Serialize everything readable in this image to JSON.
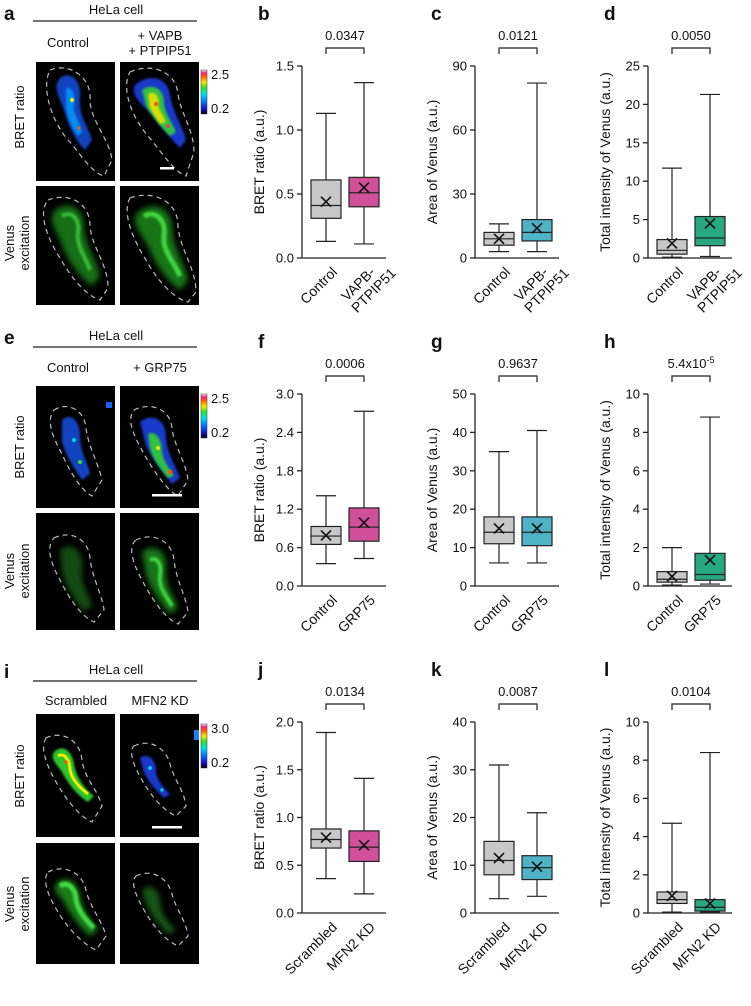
{
  "colors": {
    "control": "#c8c8c8",
    "magenta": "#d0519a",
    "teal": "#4fb3c6",
    "green": "#27a87f",
    "micro_bg": "#000000",
    "venus": "#2fd52f"
  },
  "rows": [
    {
      "header": "HeLa cell",
      "cond1": "Control",
      "cond2a": "+ VAPB",
      "cond2b": "+ PTPIP51",
      "bret_label": "BRET ratio",
      "venus_label1": "Venus",
      "venus_label2": "excitation",
      "colorbar_max": "2.5",
      "colorbar_min": "0.2"
    },
    {
      "header": "HeLa cell",
      "cond1": "Control",
      "cond2a": "+ GRP75",
      "cond2b": "",
      "bret_label": "BRET ratio",
      "venus_label1": "Venus",
      "venus_label2": "excitation",
      "colorbar_max": "2.5",
      "colorbar_min": "0.2"
    },
    {
      "header": "HeLa cell",
      "cond1": "Scrambled",
      "cond2a": "MFN2 KD",
      "cond2b": "",
      "bret_label": "BRET ratio",
      "venus_label1": "Venus",
      "venus_label2": "excitation",
      "colorbar_max": "3.0",
      "colorbar_min": "0.2"
    }
  ],
  "image_panel_letters": [
    "a",
    "e",
    "i"
  ],
  "chart_data": [
    {
      "panel": "b",
      "type": "box",
      "ylabel": "BRET ratio (a.u.)",
      "ylim": [
        0,
        1.5
      ],
      "yticks": [
        "0.0",
        "0.5",
        "1.0",
        "1.5"
      ],
      "categories": [
        "Control",
        "VAPB-|PTPIP51"
      ],
      "pvalue": "0.0347",
      "boxes": [
        {
          "min": 0.13,
          "q1": 0.31,
          "median": 0.41,
          "q3": 0.61,
          "max": 1.13,
          "mean": 0.44,
          "color": "control"
        },
        {
          "min": 0.11,
          "q1": 0.4,
          "median": 0.51,
          "q3": 0.63,
          "max": 1.37,
          "mean": 0.55,
          "color": "magenta"
        }
      ]
    },
    {
      "panel": "c",
      "type": "box",
      "ylabel": "Area of Venus (a.u.)",
      "ylim": [
        0,
        90
      ],
      "yticks": [
        "0",
        "30",
        "60",
        "90"
      ],
      "categories": [
        "Control",
        "VAPB-|PTPIP51"
      ],
      "pvalue": "0.0121",
      "boxes": [
        {
          "min": 3,
          "q1": 6,
          "median": 9,
          "q3": 12,
          "max": 16,
          "mean": 9,
          "color": "control"
        },
        {
          "min": 3,
          "q1": 8,
          "median": 12,
          "q3": 18,
          "max": 82,
          "mean": 14,
          "color": "teal"
        }
      ]
    },
    {
      "panel": "d",
      "type": "box",
      "ylabel": "Total intensity of Venus (a.u.)",
      "ylim": [
        0,
        25
      ],
      "yticks": [
        "0",
        "5",
        "10",
        "15",
        "20",
        "25"
      ],
      "categories": [
        "Control",
        "VAPB-|PTPIP51"
      ],
      "pvalue": "0.0050",
      "boxes": [
        {
          "min": 0.1,
          "q1": 0.5,
          "median": 1.0,
          "q3": 2.4,
          "max": 11.7,
          "mean": 1.9,
          "color": "control"
        },
        {
          "min": 0.2,
          "q1": 1.6,
          "median": 2.6,
          "q3": 5.4,
          "max": 21.3,
          "mean": 4.5,
          "color": "green"
        }
      ]
    },
    {
      "panel": "f",
      "type": "box",
      "ylabel": "BRET ratio (a.u.)",
      "ylim": [
        0,
        3.0
      ],
      "yticks": [
        "0.0",
        "0.6",
        "1.2",
        "1.8",
        "2.4",
        "3.0"
      ],
      "categories": [
        "Control",
        "GRP75"
      ],
      "pvalue": "0.0006",
      "boxes": [
        {
          "min": 0.35,
          "q1": 0.65,
          "median": 0.78,
          "q3": 0.93,
          "max": 1.41,
          "mean": 0.79,
          "color": "control"
        },
        {
          "min": 0.43,
          "q1": 0.7,
          "median": 0.92,
          "q3": 1.22,
          "max": 2.73,
          "mean": 0.99,
          "color": "magenta"
        }
      ]
    },
    {
      "panel": "g",
      "type": "box",
      "ylabel": "Area of Venus (a.u.)",
      "ylim": [
        0,
        50
      ],
      "yticks": [
        "0",
        "10",
        "20",
        "30",
        "40",
        "50"
      ],
      "categories": [
        "Control",
        "GRP75"
      ],
      "pvalue": "0.9637",
      "boxes": [
        {
          "min": 6,
          "q1": 11,
          "median": 14,
          "q3": 18,
          "max": 35,
          "mean": 15,
          "color": "control"
        },
        {
          "min": 6,
          "q1": 10.5,
          "median": 14,
          "q3": 18,
          "max": 40.5,
          "mean": 15,
          "color": "teal"
        }
      ]
    },
    {
      "panel": "h",
      "type": "box",
      "ylabel": "Total intensity of Venus (a.u.)",
      "ylim": [
        0,
        10
      ],
      "yticks": [
        "0",
        "2",
        "4",
        "6",
        "8",
        "10"
      ],
      "categories": [
        "Control",
        "GRP75"
      ],
      "pvalue": "5.4x10",
      "pvalue_exp": "-5",
      "boxes": [
        {
          "min": 0.05,
          "q1": 0.2,
          "median": 0.35,
          "q3": 0.75,
          "max": 2.0,
          "mean": 0.5,
          "color": "control"
        },
        {
          "min": 0.1,
          "q1": 0.3,
          "median": 0.6,
          "q3": 1.7,
          "max": 8.8,
          "mean": 1.35,
          "color": "green"
        }
      ]
    },
    {
      "panel": "j",
      "type": "box",
      "ylabel": "BRET ratio (a.u.)",
      "ylim": [
        0,
        2.0
      ],
      "yticks": [
        "0.0",
        "0.5",
        "1.0",
        "1.5",
        "2.0"
      ],
      "categories": [
        "Scrambled",
        "MFN2 KD"
      ],
      "pvalue": "0.0134",
      "boxes": [
        {
          "min": 0.36,
          "q1": 0.68,
          "median": 0.77,
          "q3": 0.88,
          "max": 1.89,
          "mean": 0.79,
          "color": "control"
        },
        {
          "min": 0.2,
          "q1": 0.54,
          "median": 0.69,
          "q3": 0.86,
          "max": 1.41,
          "mean": 0.71,
          "color": "magenta"
        }
      ]
    },
    {
      "panel": "k",
      "type": "box",
      "ylabel": "Area of Venus (a.u.)",
      "ylim": [
        0,
        40
      ],
      "yticks": [
        "0",
        "10",
        "20",
        "30",
        "40"
      ],
      "categories": [
        "Scrambled",
        "MFN2 KD"
      ],
      "pvalue": "0.0087",
      "boxes": [
        {
          "min": 3,
          "q1": 8,
          "median": 11,
          "q3": 15,
          "max": 31,
          "mean": 11.5,
          "color": "control"
        },
        {
          "min": 3.5,
          "q1": 7,
          "median": 9.5,
          "q3": 12,
          "max": 21,
          "mean": 9.7,
          "color": "teal"
        }
      ]
    },
    {
      "panel": "l",
      "type": "box",
      "ylabel": "Total intensity of Venus (a.u.)",
      "ylim": [
        0,
        10
      ],
      "yticks": [
        "0",
        "2",
        "4",
        "6",
        "8",
        "10"
      ],
      "categories": [
        "Scrambled",
        "MFN2 KD"
      ],
      "pvalue": "0.0104",
      "boxes": [
        {
          "min": 0.05,
          "q1": 0.5,
          "median": 0.7,
          "q3": 1.1,
          "max": 4.7,
          "mean": 0.9,
          "color": "control"
        },
        {
          "min": 0.05,
          "q1": 0.1,
          "median": 0.3,
          "q3": 0.7,
          "max": 8.4,
          "mean": 0.5,
          "color": "green"
        }
      ]
    }
  ]
}
